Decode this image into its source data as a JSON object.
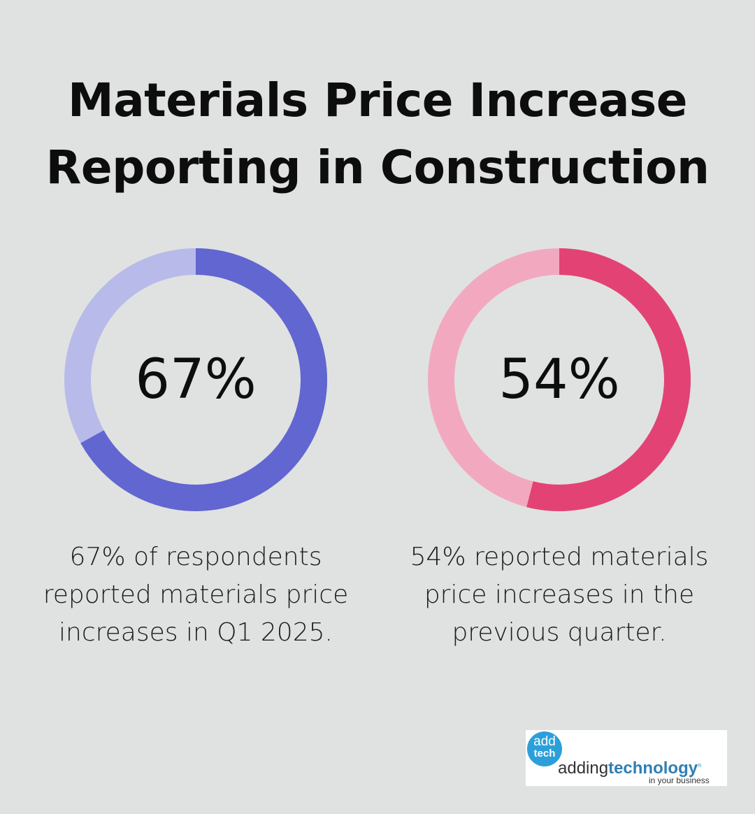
{
  "title": {
    "line1": "Materials Price Increase",
    "line2": "Reporting in Construction"
  },
  "chart_data": [
    {
      "type": "pie",
      "variant": "donut",
      "value": 67,
      "label": "67%",
      "caption": [
        "67% of respondents",
        "reported materials price",
        "increases in Q1 2025."
      ],
      "colors": {
        "filled": "#6166d1",
        "remainder": "#b8bbe9"
      }
    },
    {
      "type": "pie",
      "variant": "donut",
      "value": 54,
      "label": "54%",
      "caption": [
        "54% reported materials",
        "price increases in the",
        "previous quarter."
      ],
      "colors": {
        "filled": "#e24374",
        "remainder": "#f2a9bf"
      }
    }
  ],
  "logo": {
    "badge_top": "add",
    "badge_bottom": "tech",
    "word_regular": "adding",
    "word_bold": "technology",
    "mark": "®",
    "tagline": "in your business",
    "colors": {
      "badge": "#2c9fd8",
      "brand": "#2f7fb4"
    }
  }
}
